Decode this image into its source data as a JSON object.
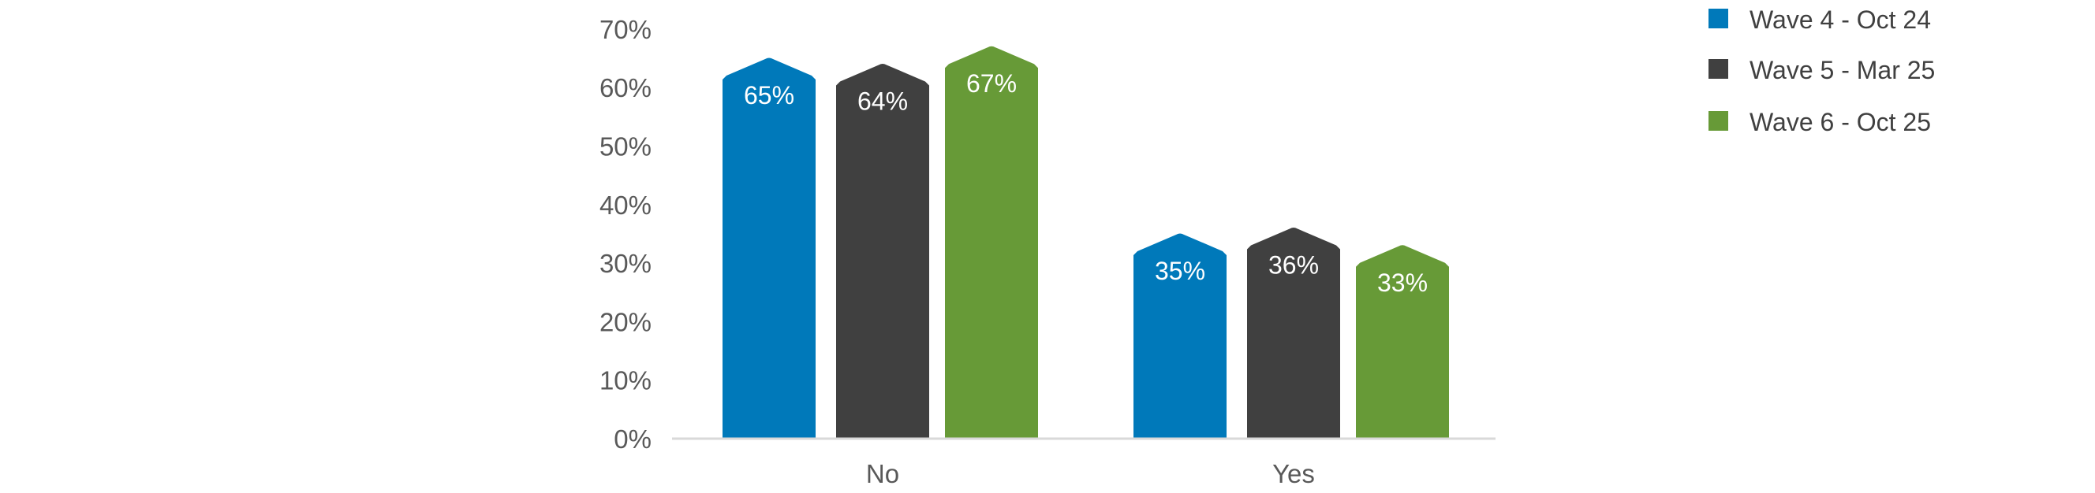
{
  "chart_data": {
    "type": "bar",
    "categories": [
      "No",
      "Yes"
    ],
    "series": [
      {
        "name": "Wave 4 - Oct 24",
        "color": "#0079BA",
        "values": [
          65,
          35
        ],
        "labels": [
          "65%",
          "35%"
        ]
      },
      {
        "name": "Wave 5 - Mar 25",
        "color": "#404040",
        "values": [
          64,
          36
        ],
        "labels": [
          "64%",
          "36%"
        ]
      },
      {
        "name": "Wave 6 - Oct 25",
        "color": "#679A37",
        "values": [
          67,
          33
        ],
        "labels": [
          "67%",
          "33%"
        ]
      }
    ],
    "ylim": [
      0,
      70
    ],
    "yticks": [
      {
        "value": 0,
        "label": "0%"
      },
      {
        "value": 10,
        "label": "10%"
      },
      {
        "value": 20,
        "label": "20%"
      },
      {
        "value": 30,
        "label": "30%"
      },
      {
        "value": 40,
        "label": "40%"
      },
      {
        "value": 50,
        "label": "50%"
      },
      {
        "value": 60,
        "label": "60%"
      },
      {
        "value": 70,
        "label": "70%"
      }
    ],
    "grid": false,
    "legend_position": "top-right",
    "axis_color": "#D9D9D9"
  }
}
